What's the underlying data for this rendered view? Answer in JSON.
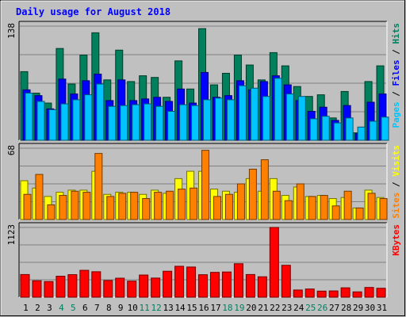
{
  "title": "Daily usage for August 2018",
  "chart_data": [
    {
      "type": "bar",
      "panel": "top",
      "ymax_label": "138",
      "ylim": [
        0,
        138
      ],
      "right_label_parts": [
        {
          "text": "Pages",
          "color": "#00c4ff"
        },
        {
          "text": " / ",
          "color": "#000000"
        },
        {
          "text": "Files",
          "color": "#0000ff"
        },
        {
          "text": " / ",
          "color": "#000000"
        },
        {
          "text": "Hits",
          "color": "#008060"
        }
      ],
      "series": [
        {
          "name": "Hits",
          "color": "#00805c",
          "values": [
            83,
            57,
            45,
            111,
            68,
            103,
            130,
            73,
            109,
            71,
            78,
            76,
            52,
            96,
            62,
            135,
            67,
            81,
            103,
            91,
            73,
            106,
            90,
            65,
            53,
            55,
            27,
            59,
            9,
            71,
            90
          ]
        },
        {
          "name": "Files",
          "color": "#0000ff",
          "values": [
            61,
            54,
            38,
            74,
            56,
            72,
            80,
            48,
            73,
            48,
            50,
            52,
            47,
            62,
            45,
            82,
            52,
            54,
            72,
            61,
            71,
            78,
            67,
            48,
            35,
            40,
            24,
            42,
            8,
            46,
            56
          ]
        },
        {
          "name": "Pages",
          "color": "#00c4ff",
          "values": [
            57,
            47,
            37,
            44,
            49,
            55,
            68,
            41,
            42,
            43,
            44,
            41,
            35,
            43,
            42,
            49,
            51,
            49,
            66,
            63,
            53,
            75,
            56,
            53,
            26,
            29,
            21,
            27,
            16,
            23,
            28
          ]
        }
      ]
    },
    {
      "type": "bar",
      "panel": "middle",
      "ymax_label": "68",
      "ylim": [
        0,
        68
      ],
      "right_label_parts": [
        {
          "text": "Sites",
          "color": "#ff8000"
        },
        {
          "text": " / ",
          "color": "#000000"
        },
        {
          "text": "Visits",
          "color": "#ffff00"
        }
      ],
      "series": [
        {
          "name": "Visits",
          "color": "#ffff00",
          "values": [
            37,
            30,
            22,
            26,
            28,
            28,
            46,
            24,
            26,
            26,
            24,
            28,
            25,
            39,
            46,
            46,
            29,
            27,
            26,
            39,
            27,
            39,
            23,
            31,
            22,
            23,
            20,
            21,
            11,
            28,
            21
          ]
        },
        {
          "name": "Sites",
          "color": "#ff8000",
          "values": [
            24,
            43,
            14,
            23,
            27,
            26,
            63,
            22,
            25,
            26,
            20,
            26,
            27,
            29,
            30,
            66,
            22,
            24,
            34,
            48,
            57,
            27,
            18,
            34,
            22,
            23,
            13,
            27,
            11,
            25,
            20
          ]
        }
      ]
    },
    {
      "type": "bar",
      "panel": "bottom",
      "ymax_label": "1123",
      "ylim": [
        0,
        1123
      ],
      "right_label_parts": [
        {
          "text": "KBytes",
          "color": "#ff0000"
        }
      ],
      "series": [
        {
          "name": "KBytes",
          "color": "#ff0000",
          "values": [
            365,
            265,
            252,
            338,
            363,
            433,
            410,
            269,
            306,
            259,
            357,
            308,
            418,
            498,
            486,
            362,
            400,
            406,
            539,
            365,
            329,
            1123,
            514,
            116,
            132,
            98,
            101,
            151,
            86,
            157,
            144
          ]
        }
      ]
    }
  ],
  "x_labels": [
    "1",
    "2",
    "3",
    "4",
    "5",
    "6",
    "7",
    "8",
    "9",
    "10",
    "11",
    "12",
    "13",
    "14",
    "15",
    "16",
    "17",
    "18",
    "19",
    "20",
    "21",
    "22",
    "23",
    "24",
    "25",
    "26",
    "27",
    "28",
    "29",
    "30",
    "31"
  ],
  "weekend_days": [
    4,
    5,
    11,
    12,
    18,
    19,
    25,
    26
  ],
  "colors": {
    "background": "#c0c0c0",
    "title": "#0000ff",
    "weekday_label": "#000000",
    "weekend_label": "#008060",
    "gridline": "#808080"
  }
}
